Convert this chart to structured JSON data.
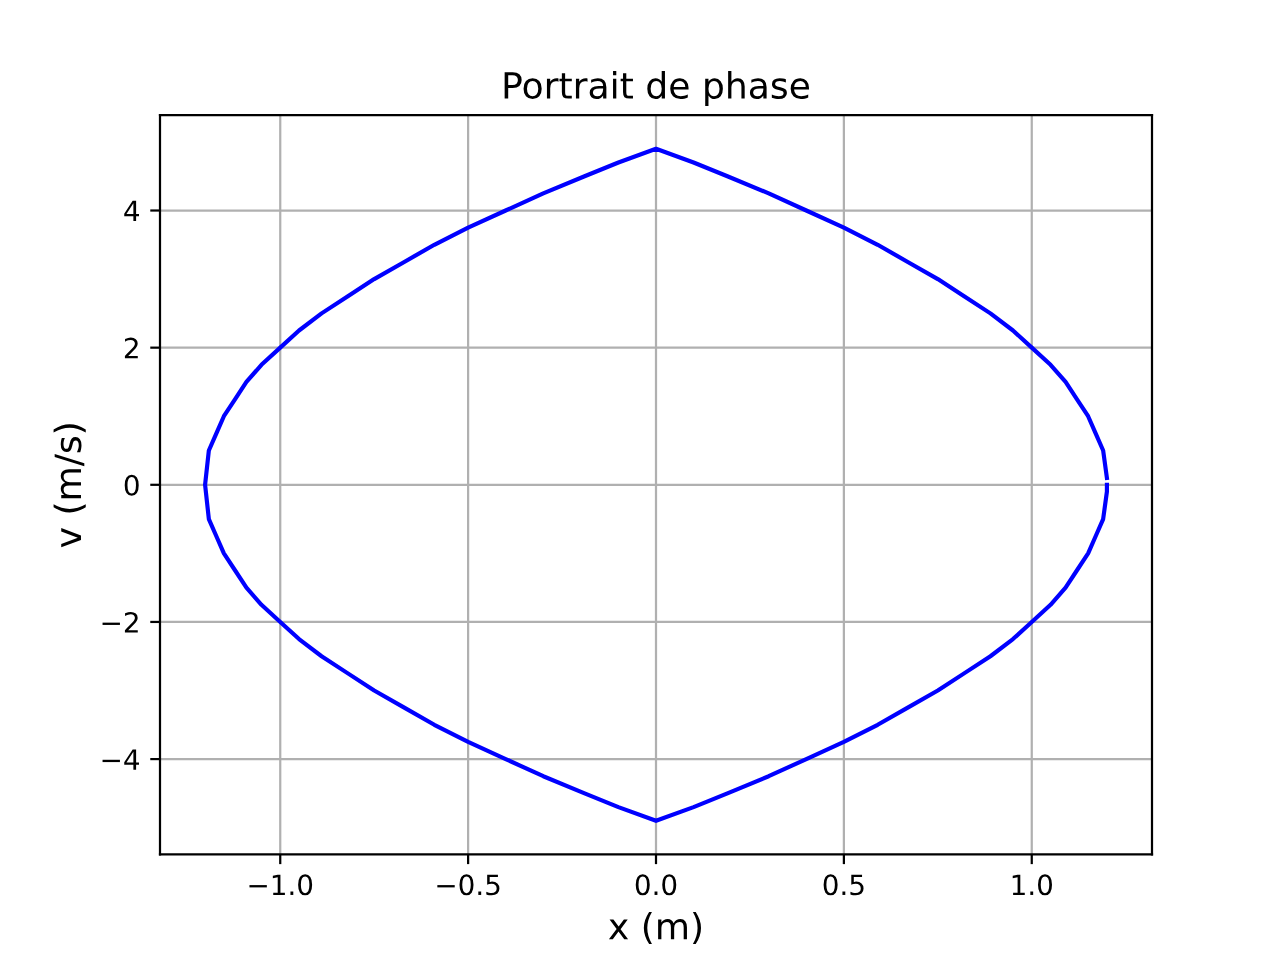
{
  "chart_data": {
    "type": "line",
    "title": "Portrait de phase",
    "xlabel": "x (m)",
    "ylabel": "v (m/s)",
    "series": [
      {
        "color": "#0000ff",
        "x": [
          1.2,
          1.2,
          1.19,
          1.17,
          1.15,
          1.12,
          1.09,
          1.05,
          1.0,
          0.95,
          0.89,
          0.82,
          0.75,
          0.67,
          0.59,
          0.5,
          0.4,
          0.3,
          0.19,
          0.1,
          0,
          -0.1,
          -0.19,
          -0.3,
          -0.4,
          -0.5,
          -0.59,
          -0.67,
          -0.75,
          -0.82,
          -0.89,
          -0.95,
          -1.0,
          -1.05,
          -1.09,
          -1.12,
          -1.15,
          -1.17,
          -1.19,
          -1.2,
          -1.19,
          -1.17,
          -1.15,
          -1.12,
          -1.09,
          -1.05,
          -1.0,
          -0.95,
          -0.89,
          -0.82,
          -0.75,
          -0.67,
          -0.59,
          -0.5,
          -0.4,
          -0.3,
          -0.19,
          -0.1,
          0,
          0.1,
          0.19,
          0.3,
          0.4,
          0.5,
          0.59,
          0.67,
          0.75,
          0.82,
          0.89,
          0.95,
          1.0,
          1.05,
          1.09,
          1.12,
          1.15,
          1.17,
          1.19,
          1.2
        ],
        "values": [
          0,
          -0.1,
          -0.5,
          -0.75,
          -1.0,
          -1.25,
          -1.5,
          -1.75,
          -2.0,
          -2.25,
          -2.5,
          -2.75,
          -3.0,
          -3.25,
          -3.5,
          -3.75,
          -4.0,
          -4.25,
          -4.5,
          -4.7,
          -4.9,
          -4.7,
          -4.5,
          -4.25,
          -4.0,
          -3.75,
          -3.5,
          -3.25,
          -3.0,
          -2.75,
          -2.5,
          -2.25,
          -2.0,
          -1.75,
          -1.5,
          -1.25,
          -1.0,
          -0.75,
          -0.5,
          0,
          0.5,
          0.75,
          1.0,
          1.25,
          1.5,
          1.75,
          2.0,
          2.25,
          2.5,
          2.75,
          3.0,
          3.25,
          3.5,
          3.75,
          4.0,
          4.25,
          4.5,
          4.7,
          4.9,
          4.7,
          4.5,
          4.25,
          4.0,
          3.75,
          3.5,
          3.25,
          3.0,
          2.75,
          2.5,
          2.25,
          2.0,
          1.75,
          1.5,
          1.25,
          1.0,
          0.75,
          0.5,
          0.1
        ]
      }
    ],
    "xlim": [
      -1.32,
      1.32
    ],
    "ylim": [
      -5.39,
      5.39
    ],
    "xticks": [
      {
        "value": -1.0,
        "label": "−1.0"
      },
      {
        "value": -0.5,
        "label": "−0.5"
      },
      {
        "value": 0.0,
        "label": "0.0"
      },
      {
        "value": 0.5,
        "label": "0.5"
      },
      {
        "value": 1.0,
        "label": "1.0"
      }
    ],
    "yticks": [
      {
        "value": -4,
        "label": "−4"
      },
      {
        "value": -2,
        "label": "−2"
      },
      0,
      2,
      4
    ],
    "grid": true,
    "line_style": "solid",
    "marker": "none"
  }
}
